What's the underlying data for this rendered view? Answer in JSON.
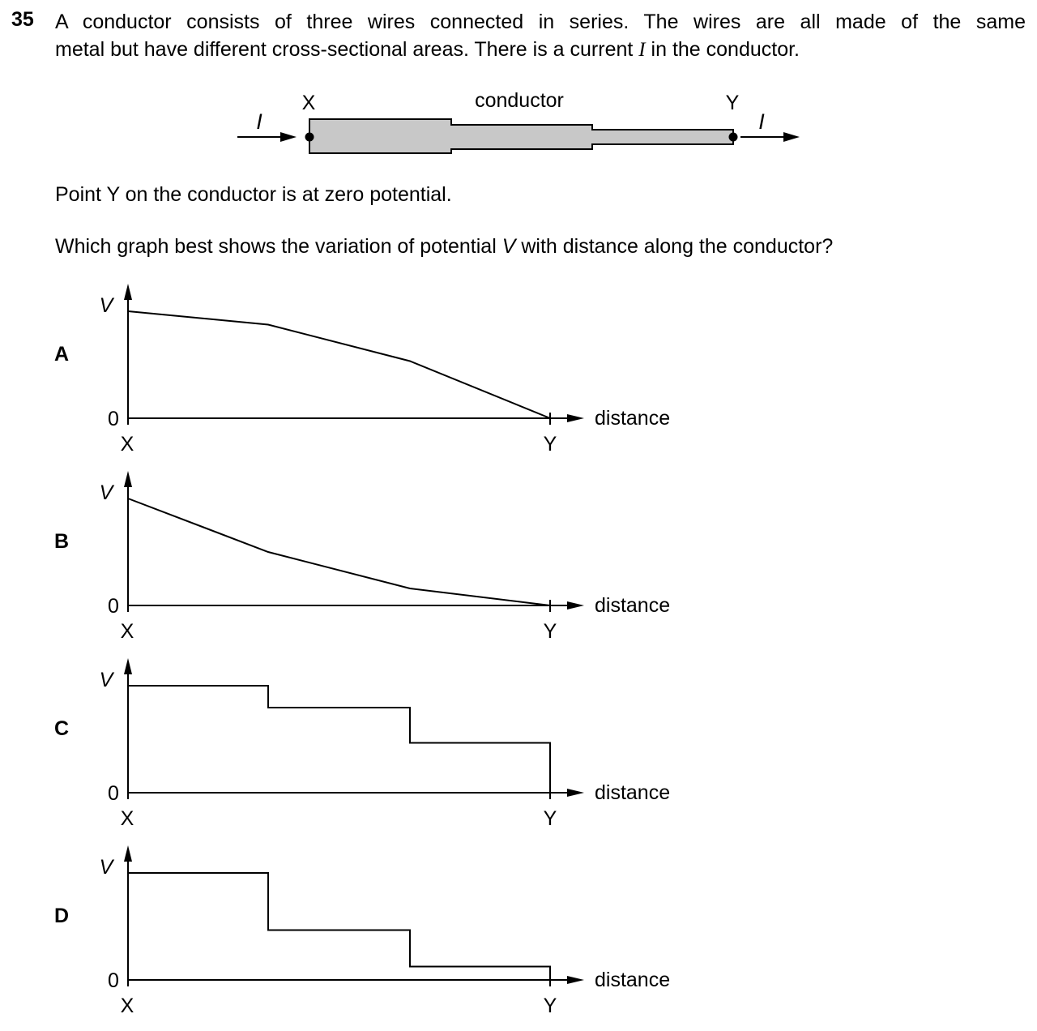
{
  "question": {
    "number": "35",
    "stem_line1": "A conductor consists of three wires connected in series. The wires are all made of the same",
    "stem_line2_pre": "metal but have different cross-sectional areas. There is a current ",
    "stem_current_symbol": "I",
    "stem_line2_post": " in the conductor.",
    "point_statement": "Point Y on the conductor is at zero potential.",
    "prompt_pre": "Which graph best shows the variation of potential ",
    "prompt_symbol": "V",
    "prompt_post": " with distance along the conductor?"
  },
  "diagram": {
    "label_x": "X",
    "label_y": "Y",
    "label_conductor": "conductor",
    "label_current_in": "I",
    "label_current_out": "I",
    "fill_color": "#c8c8c8"
  },
  "axis_labels": {
    "v": "V",
    "zero": "0",
    "distance": "distance",
    "x_start": "X",
    "x_end": "Y"
  },
  "options": [
    {
      "letter": "A",
      "shape": "sloped",
      "v_at_boundaries": [
        0.88,
        0.77,
        0.47,
        0.0
      ]
    },
    {
      "letter": "B",
      "shape": "sloped",
      "v_at_boundaries": [
        0.88,
        0.44,
        0.14,
        0.0
      ]
    },
    {
      "letter": "C",
      "shape": "stepped",
      "v_levels": [
        0.88,
        0.7,
        0.41
      ]
    },
    {
      "letter": "D",
      "shape": "stepped",
      "v_levels": [
        0.88,
        0.41,
        0.11
      ]
    }
  ]
}
